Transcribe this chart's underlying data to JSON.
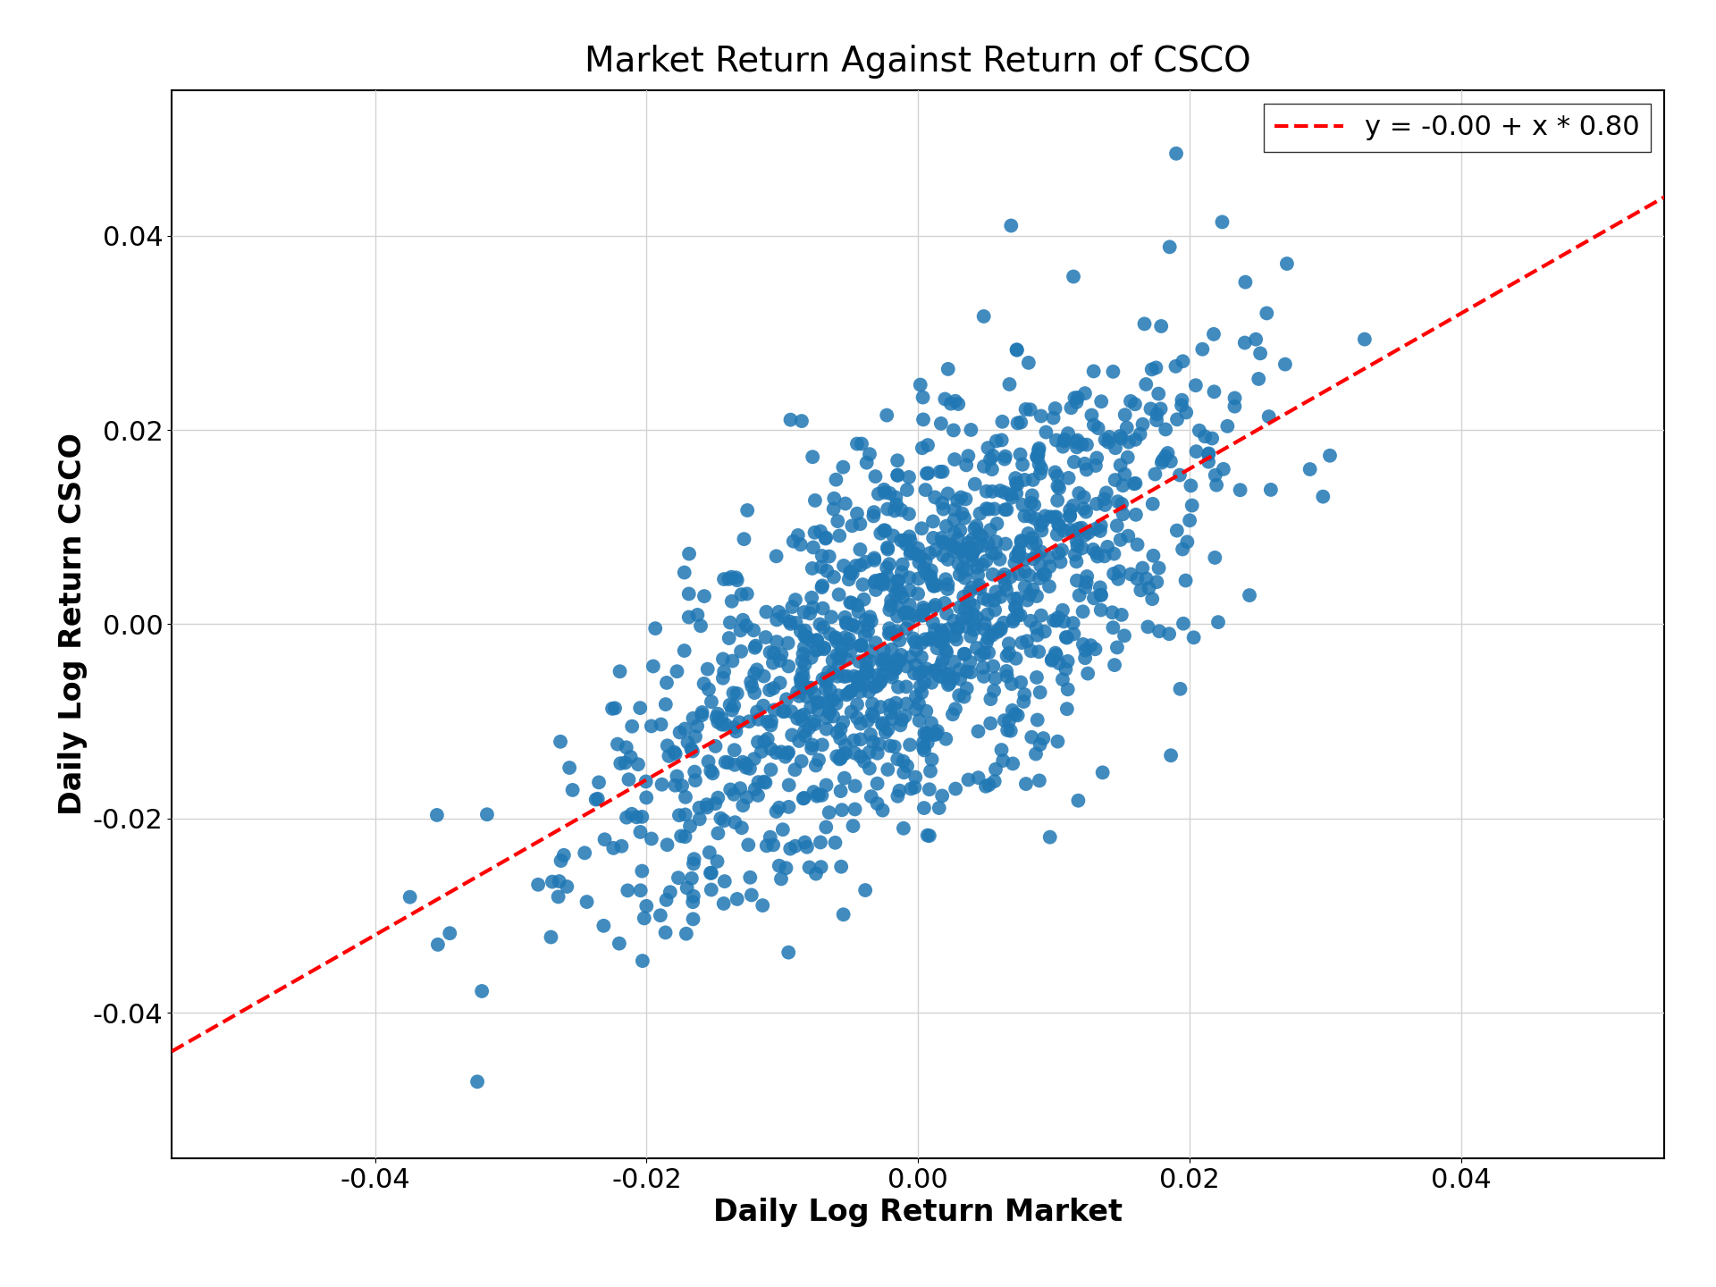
{
  "title": "Market Return Against Return of CSCO",
  "xlabel": "Daily Log Return Market",
  "ylabel": "Daily Log Return CSCO",
  "legend_label": "y = -0.00 + x * 0.80",
  "intercept": 0.0,
  "slope": 0.8,
  "xlim": [
    -0.055,
    0.055
  ],
  "ylim": [
    -0.055,
    0.055
  ],
  "dot_color": "#1f77b4",
  "line_color": "red",
  "n_points": 1260,
  "seed": 7,
  "market_std": 0.0115,
  "noise_std": 0.0095,
  "title_fontsize": 28,
  "label_fontsize": 24,
  "tick_fontsize": 22,
  "legend_fontsize": 22,
  "dot_size": 130,
  "dot_alpha": 0.85,
  "xticks": [
    -0.04,
    -0.02,
    0.0,
    0.02,
    0.04
  ],
  "yticks": [
    -0.04,
    -0.02,
    0.0,
    0.02,
    0.04
  ],
  "figsize": [
    19.2,
    14.4
  ],
  "dpi": 100
}
